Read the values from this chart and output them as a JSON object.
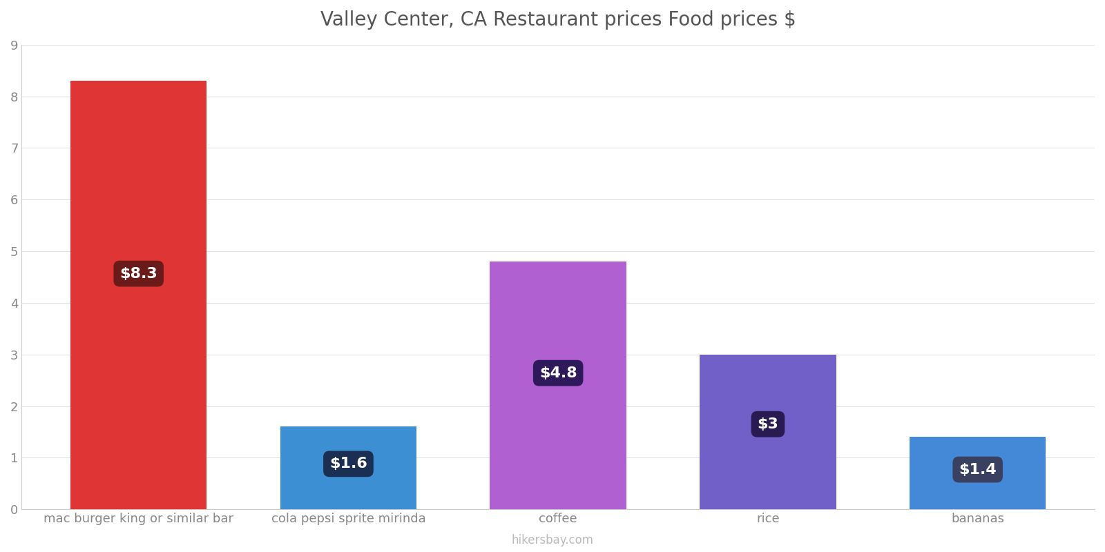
{
  "title": "Valley Center, CA Restaurant prices Food prices $",
  "categories": [
    "mac burger king or similar bar",
    "cola pepsi sprite mirinda",
    "coffee",
    "rice",
    "bananas"
  ],
  "values": [
    8.3,
    1.6,
    4.8,
    3.0,
    1.4
  ],
  "labels": [
    "$8.3",
    "$1.6",
    "$4.8",
    "$3",
    "$1.4"
  ],
  "bar_colors": [
    "#e03535",
    "#3d8fd4",
    "#b060d0",
    "#7060c8",
    "#4488d8"
  ],
  "label_bg_colors": [
    "#6b1a1a",
    "#1a2f52",
    "#2e1a5a",
    "#2a1a52",
    "#3a4060"
  ],
  "ylim": [
    0,
    9
  ],
  "yticks": [
    0,
    1,
    2,
    3,
    4,
    5,
    6,
    7,
    8,
    9
  ],
  "title_fontsize": 20,
  "tick_fontsize": 13,
  "label_fontsize": 16,
  "watermark": "hikersbay.com",
  "background_color": "#ffffff",
  "grid_color": "#e0e0ea"
}
